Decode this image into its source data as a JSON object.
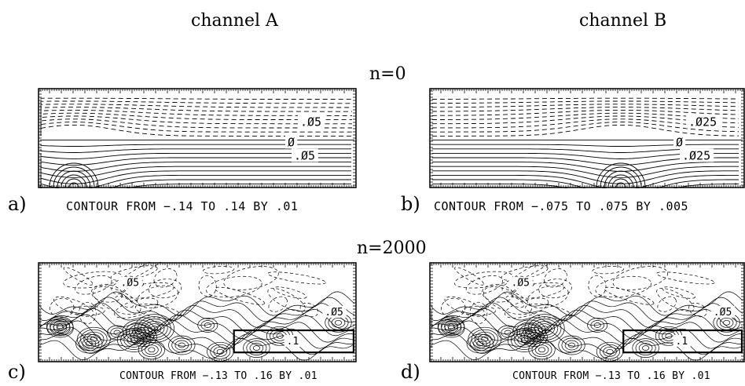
{
  "figure": {
    "columns": [
      "channel A",
      "channel B"
    ],
    "rows": [
      "n=0",
      "n=2000"
    ],
    "panels": [
      {
        "label": "a)",
        "caption": "CONTOUR FROM −.14 TO .14 BY .01",
        "contour_labels": [
          ".Ø5",
          "Ø",
          ".Ø5"
        ]
      },
      {
        "label": "b)",
        "caption": "CONTOUR FROM −.075 TO .075 BY .005",
        "contour_labels": [
          ".Ø25",
          "Ø",
          ".Ø25"
        ]
      },
      {
        "label": "c)",
        "caption": "CONTOUR FROM −.13 TO .16 BY .01",
        "contour_labels": [
          ".Ø5",
          ".Ø5",
          ".1"
        ]
      },
      {
        "label": "d)",
        "caption": "CONTOUR FROM −.13 TO .16 BY .01",
        "contour_labels": [
          ".Ø5",
          ".Ø5",
          ".1"
        ]
      }
    ]
  }
}
